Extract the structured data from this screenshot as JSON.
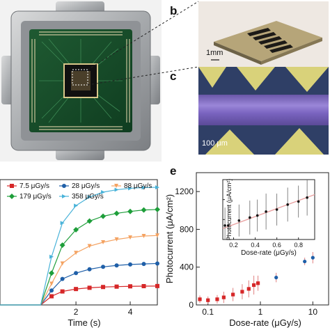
{
  "panels": {
    "b": {
      "label": "b",
      "scalebar": "1mm"
    },
    "c": {
      "label": "c",
      "scalebar": "100 μm"
    },
    "e": {
      "label": "e"
    }
  },
  "chart_data": [
    {
      "id": "d",
      "type": "line",
      "xlabel": "Time (s)",
      "ylabel": "",
      "xlim": [
        -0.8,
        5.0
      ],
      "ylim": [
        0,
        1300
      ],
      "xticks": [
        2,
        4
      ],
      "legend_position": "top",
      "series": [
        {
          "name": "7.5 μGy/s",
          "color": "#d62728",
          "marker": "square",
          "x": [
            0.3,
            0.7,
            1.1,
            1.5,
            2.0,
            2.5,
            3.0,
            3.5,
            4.0,
            4.5,
            5.0
          ],
          "y": [
            0,
            0,
            90,
            140,
            165,
            178,
            186,
            190,
            193,
            195,
            196
          ]
        },
        {
          "name": "28 μGy/s",
          "color": "#1f5fa8",
          "marker": "circle",
          "x": [
            0.3,
            0.7,
            1.1,
            1.5,
            2.0,
            2.5,
            3.0,
            3.5,
            4.0,
            4.5,
            5.0
          ],
          "y": [
            0,
            0,
            150,
            270,
            330,
            370,
            395,
            410,
            420,
            425,
            430
          ]
        },
        {
          "name": "88 μGy/s",
          "color": "#f4a261",
          "marker": "triangle-down",
          "x": [
            0.3,
            0.7,
            1.1,
            1.5,
            2.0,
            2.5,
            3.0,
            3.5,
            4.0,
            4.5,
            5.0
          ],
          "y": [
            0,
            0,
            220,
            430,
            540,
            610,
            650,
            680,
            700,
            715,
            720
          ]
        },
        {
          "name": "179 μGy/s",
          "color": "#1e9e3a",
          "marker": "diamond",
          "x": [
            0.3,
            0.7,
            1.1,
            1.5,
            2.0,
            2.5,
            3.0,
            3.5,
            4.0,
            4.5,
            5.0
          ],
          "y": [
            0,
            0,
            330,
            620,
            780,
            870,
            920,
            950,
            970,
            985,
            990
          ]
        },
        {
          "name": "358 μGy/s",
          "color": "#4ab3d9",
          "marker": "triangle-right",
          "x": [
            0.3,
            0.7,
            1.1,
            1.5,
            2.0,
            2.5,
            3.0,
            3.5,
            4.0,
            4.5,
            5.0
          ],
          "y": [
            0,
            0,
            500,
            850,
            1030,
            1120,
            1170,
            1195,
            1210,
            1218,
            1220
          ]
        }
      ]
    },
    {
      "id": "e",
      "type": "scatter",
      "xlabel": "Dose-rate (μGy/s)",
      "ylabel": "Photocurrent (μA/cm²)",
      "xscale": "log",
      "xlim": [
        0.06,
        20
      ],
      "ylim": [
        0,
        1400
      ],
      "yticks": [
        0,
        400,
        800,
        1200
      ],
      "xticks": [
        0.1,
        1,
        10
      ],
      "xtick_labels": [
        "0.1",
        "1",
        "10"
      ],
      "series": [
        {
          "color": "#d62728",
          "marker": "square",
          "x": [
            0.07,
            0.1,
            0.15,
            0.2,
            0.3,
            0.45,
            0.6,
            0.75,
            0.9
          ],
          "y": [
            60,
            50,
            60,
            80,
            110,
            140,
            170,
            210,
            230
          ],
          "err": [
            40,
            40,
            45,
            60,
            70,
            80,
            90,
            100,
            80
          ]
        },
        {
          "color": "#1f5fa8",
          "marker": "circle",
          "x": [
            2,
            7,
            10
          ],
          "y": [
            290,
            460,
            500
          ],
          "err": [
            50,
            40,
            60
          ]
        }
      ],
      "inset": {
        "xlabel": "Dose-rate (μGy/s)",
        "ylabel": "Photocurrent (μA/cm²)",
        "xlim": [
          0.1,
          0.95
        ],
        "ylim": [
          0,
          300
        ],
        "xticks": [
          0.2,
          0.4,
          0.6,
          0.8
        ],
        "yticks": [
          0,
          100,
          200
        ],
        "points": {
          "x": [
            0.12,
            0.15,
            0.25,
            0.35,
            0.42,
            0.5,
            0.6,
            0.7,
            0.8,
            0.88
          ],
          "y": [
            70,
            70,
            95,
            110,
            120,
            140,
            150,
            175,
            190,
            210
          ],
          "err": [
            90,
            100,
            80,
            85,
            80,
            90,
            80,
            85,
            80,
            90
          ]
        },
        "fit": {
          "x": [
            0.1,
            0.95
          ],
          "y": [
            55,
            225
          ],
          "color": "#e9a0a0"
        }
      }
    }
  ]
}
